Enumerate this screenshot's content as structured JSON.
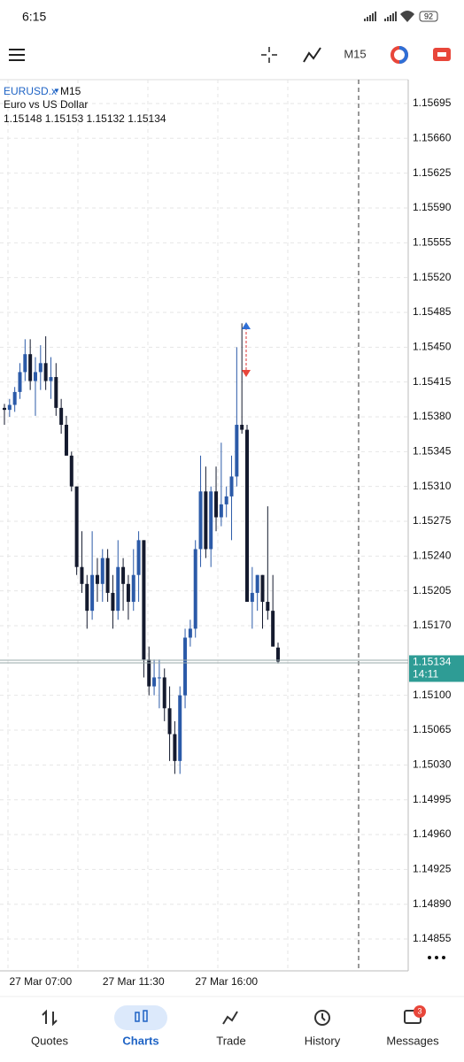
{
  "status_bar": {
    "time": "6:15",
    "battery": "92"
  },
  "toolbar": {
    "timeframe": "M15"
  },
  "chart": {
    "type": "candlestick",
    "symbol": "EURUSD.x",
    "timeframe": "M15",
    "description": "Euro vs US Dollar",
    "up_color": "#2b5aa8",
    "down_color": "#141a2e",
    "candles": [
      [
        1.15389,
        1.15393,
        1.15372,
        1.15387
      ],
      [
        1.15387,
        1.15398,
        1.1538,
        1.15392
      ],
      [
        1.15392,
        1.1541,
        1.15385,
        1.15405
      ],
      [
        1.15405,
        1.15434,
        1.15398,
        1.15425
      ],
      [
        1.15425,
        1.15458,
        1.15416,
        1.15443
      ],
      [
        1.15443,
        1.15458,
        1.15407,
        1.15416
      ],
      [
        1.15416,
        1.1544,
        1.15381,
        1.15425
      ],
      [
        1.15425,
        1.15452,
        1.15407,
        1.15434
      ],
      [
        1.15434,
        1.15461,
        1.15407,
        1.15416
      ],
      [
        1.15416,
        1.1544,
        1.15398,
        1.1542
      ],
      [
        1.1542,
        1.15434,
        1.15381,
        1.15389
      ],
      [
        1.15389,
        1.15398,
        1.15363,
        1.15372
      ],
      [
        1.15372,
        1.15381,
        1.15341,
        1.15341
      ],
      [
        1.15341,
        1.15345,
        1.15305,
        1.1531
      ],
      [
        1.1531,
        1.1531,
        1.15221,
        1.15229
      ],
      [
        1.15229,
        1.15265,
        1.15203,
        1.15212
      ],
      [
        1.15212,
        1.15221,
        1.15167,
        1.15185
      ],
      [
        1.15185,
        1.15265,
        1.15176,
        1.15221
      ],
      [
        1.15221,
        1.15238,
        1.15194,
        1.15212
      ],
      [
        1.15212,
        1.15247,
        1.15194,
        1.15238
      ],
      [
        1.15238,
        1.15247,
        1.15194,
        1.15203
      ],
      [
        1.15203,
        1.15221,
        1.15167,
        1.15185
      ],
      [
        1.15185,
        1.15256,
        1.15176,
        1.15229
      ],
      [
        1.15229,
        1.15238,
        1.15185,
        1.15212
      ],
      [
        1.15212,
        1.15221,
        1.15176,
        1.15194
      ],
      [
        1.15194,
        1.15247,
        1.15185,
        1.15221
      ],
      [
        1.15221,
        1.15265,
        1.15194,
        1.15256
      ],
      [
        1.15256,
        1.15256,
        1.15118,
        1.15136
      ],
      [
        1.15136,
        1.15149,
        1.151,
        1.15109
      ],
      [
        1.15109,
        1.15136,
        1.151,
        1.15118
      ],
      [
        1.15118,
        1.15136,
        1.15087,
        1.15118
      ],
      [
        1.15118,
        1.15127,
        1.15074,
        1.15087
      ],
      [
        1.15087,
        1.15109,
        1.15034,
        1.15061
      ],
      [
        1.15061,
        1.15074,
        1.15021,
        1.15034
      ],
      [
        1.15034,
        1.15109,
        1.15021,
        1.151
      ],
      [
        1.151,
        1.15167,
        1.15087,
        1.15158
      ],
      [
        1.15158,
        1.15176,
        1.15149,
        1.15167
      ],
      [
        1.15167,
        1.15256,
        1.15158,
        1.15247
      ],
      [
        1.15247,
        1.15341,
        1.15229,
        1.15305
      ],
      [
        1.15305,
        1.1533,
        1.15238,
        1.15247
      ],
      [
        1.15247,
        1.1531,
        1.15229,
        1.15305
      ],
      [
        1.15305,
        1.1533,
        1.15265,
        1.15279
      ],
      [
        1.15279,
        1.15354,
        1.1527,
        1.15292
      ],
      [
        1.15292,
        1.1531,
        1.15279,
        1.153
      ],
      [
        1.153,
        1.15341,
        1.15256,
        1.1532
      ],
      [
        1.1532,
        1.1545,
        1.1531,
        1.15372
      ],
      [
        1.15372,
        1.15474,
        1.15363,
        1.15367
      ],
      [
        1.15367,
        1.15372,
        1.15194,
        1.15194
      ],
      [
        1.15194,
        1.15229,
        1.15167,
        1.15203
      ],
      [
        1.15203,
        1.15221,
        1.15185,
        1.15221
      ],
      [
        1.15221,
        1.15221,
        1.15167,
        1.15194
      ],
      [
        1.15194,
        1.1529,
        1.15176,
        1.15185
      ],
      [
        1.15185,
        1.15221,
        1.15149,
        1.15149
      ],
      [
        1.15148,
        1.15153,
        1.15132,
        1.15134
      ]
    ],
    "ylim": [
      1.14823,
      1.15719
    ],
    "yticks": [
      1.15695,
      {
        "value": 1.1566,
        "label": "1.15660"
      },
      1.15625,
      {
        "value": 1.1559,
        "label": "1.15590"
      },
      1.15555,
      {
        "value": 1.1552,
        "label": "1.15520"
      },
      1.15485,
      {
        "value": 1.1545,
        "label": "1.15450"
      },
      1.15415,
      {
        "value": 1.1538,
        "label": "1.15380"
      },
      1.15345,
      {
        "value": 1.1531,
        "label": "1.15310"
      },
      1.15275,
      {
        "value": 1.1524,
        "label": "1.15240"
      },
      1.15205,
      {
        "value": 1.1517,
        "label": "1.15170"
      },
      {
        "value": 1.151,
        "label": "1.15100"
      },
      1.15065,
      {
        "value": 1.1503,
        "label": "1.15030"
      },
      1.14995,
      {
        "value": 1.1496,
        "label": "1.14960"
      },
      1.14925,
      {
        "value": 1.1489,
        "label": "1.14890"
      },
      1.14855
    ],
    "xticks": [
      {
        "value": 7,
        "label": "27 Mar 07:00"
      },
      {
        "value": 25,
        "label": "27 Mar 11:30"
      },
      {
        "value": 43,
        "label": "27 Mar 16:00"
      }
    ],
    "current_time": "14:11"
  },
  "bottom_nav": [
    {
      "label": "Quotes"
    },
    {
      "label": "Charts"
    },
    {
      "label": "Trade"
    },
    {
      "label": "History"
    },
    {
      "label": "Messages",
      "badge": 3
    }
  ]
}
